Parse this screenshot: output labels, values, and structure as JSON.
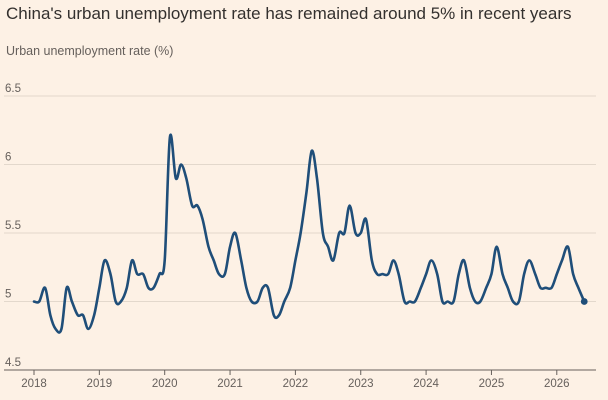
{
  "chart_data": {
    "type": "line",
    "title": "China's urban unemployment rate has remained around 5% in recent years",
    "ylabel": "Urban unemployment rate (%)",
    "xlabel": "",
    "ylim": [
      4.5,
      6.5
    ],
    "yticks": [
      4.5,
      5,
      5.5,
      6,
      6.5
    ],
    "ytick_labels": [
      "4.5",
      "5",
      "5.5",
      "6",
      "6.5"
    ],
    "xlim": [
      2018.0,
      2026.6
    ],
    "xticks": [
      2018,
      2019,
      2020,
      2021,
      2022,
      2023,
      2024,
      2025,
      2026
    ],
    "xtick_labels": [
      "2018",
      "2019",
      "2020",
      "2021",
      "2022",
      "2023",
      "2024",
      "2025",
      "2026"
    ],
    "grid": "horizontal",
    "colors": {
      "line": "#1f4e79",
      "grid": "#e3d8cc",
      "axis": "#66605c",
      "background": "#fdf1e5"
    },
    "series": [
      {
        "x": [
          2018.0,
          2018.08,
          2018.17,
          2018.25,
          2018.33,
          2018.42,
          2018.5,
          2018.58,
          2018.67,
          2018.75,
          2018.83,
          2018.92,
          2019.0,
          2019.08,
          2019.17,
          2019.25,
          2019.33,
          2019.42,
          2019.5,
          2019.58,
          2019.67,
          2019.75,
          2019.83,
          2019.92,
          2020.0,
          2020.08,
          2020.17,
          2020.25,
          2020.33,
          2020.42,
          2020.5,
          2020.58,
          2020.67,
          2020.75,
          2020.83,
          2020.92,
          2021.0,
          2021.08,
          2021.17,
          2021.25,
          2021.33,
          2021.42,
          2021.5,
          2021.58,
          2021.67,
          2021.75,
          2021.83,
          2021.92,
          2022.0,
          2022.08,
          2022.17,
          2022.25,
          2022.33,
          2022.42,
          2022.5,
          2022.58,
          2022.67,
          2022.75,
          2022.83,
          2022.92,
          2023.0,
          2023.08,
          2023.17,
          2023.25,
          2023.33,
          2023.42,
          2023.5,
          2023.58,
          2023.67,
          2023.75,
          2023.83,
          2023.92,
          2024.0,
          2024.08,
          2024.17,
          2024.25,
          2024.33,
          2024.42,
          2024.5,
          2024.58,
          2024.67,
          2024.75,
          2024.83,
          2024.92,
          2025.0,
          2025.08,
          2025.17,
          2025.25,
          2025.33,
          2025.42,
          2025.5,
          2025.58,
          2025.67,
          2025.75,
          2025.83,
          2025.92,
          2026.0,
          2026.08,
          2026.17,
          2026.25,
          2026.33,
          2026.42
        ],
        "values": [
          5.0,
          5.0,
          5.1,
          4.9,
          4.8,
          4.8,
          5.1,
          5.0,
          4.9,
          4.9,
          4.8,
          4.9,
          5.1,
          5.3,
          5.2,
          5.0,
          5.0,
          5.1,
          5.3,
          5.2,
          5.2,
          5.1,
          5.1,
          5.2,
          5.3,
          6.2,
          5.9,
          6.0,
          5.9,
          5.7,
          5.7,
          5.6,
          5.4,
          5.3,
          5.2,
          5.2,
          5.4,
          5.5,
          5.3,
          5.1,
          5.0,
          5.0,
          5.1,
          5.1,
          4.9,
          4.9,
          5.0,
          5.1,
          5.3,
          5.5,
          5.8,
          6.1,
          5.9,
          5.5,
          5.4,
          5.3,
          5.5,
          5.5,
          5.7,
          5.5,
          5.5,
          5.6,
          5.3,
          5.2,
          5.2,
          5.2,
          5.3,
          5.2,
          5.0,
          5.0,
          5.0,
          5.1,
          5.2,
          5.3,
          5.2,
          5.0,
          5.0,
          5.0,
          5.2,
          5.3,
          5.1,
          5.0,
          5.0,
          5.1,
          5.2,
          5.4,
          5.2,
          5.1,
          5.0,
          5.0,
          5.2,
          5.3,
          5.2,
          5.1,
          5.1,
          5.1,
          5.2,
          5.3,
          5.4,
          5.2,
          5.1,
          5.0
        ]
      }
    ]
  }
}
